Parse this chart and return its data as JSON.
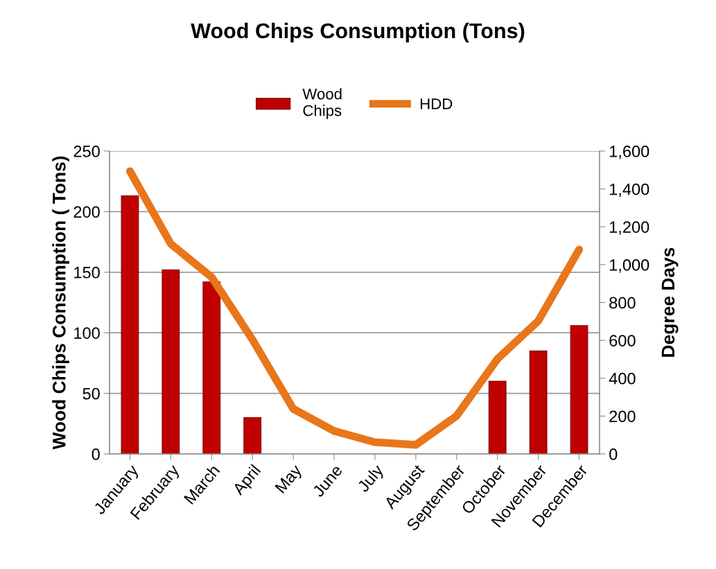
{
  "chart_data": {
    "type": "bar",
    "title": "Wood Chips Consumption (Tons)",
    "ylabel": "Wood Chips Consumption ( Tons)",
    "y2label": "Degree Days",
    "categories": [
      "January",
      "February",
      "March",
      "April",
      "May",
      "June",
      "July",
      "August",
      "September",
      "October",
      "November",
      "December"
    ],
    "series": [
      {
        "name": "Wood\nChips",
        "color": "#c00000",
        "values": [
          213,
          152,
          142,
          30,
          null,
          null,
          null,
          null,
          null,
          60,
          85,
          106
        ]
      },
      {
        "name": "HDD",
        "type": "line",
        "axis": "y2",
        "color": "#e8761a",
        "values": [
          1494,
          1110,
          934,
          604,
          238,
          121,
          62,
          48,
          201,
          502,
          703,
          1080
        ]
      }
    ],
    "ylim": [
      0,
      250
    ],
    "yticks": [
      0,
      50,
      100,
      150,
      200,
      250
    ],
    "y2lim": [
      0,
      1600
    ],
    "y2ticks": [
      {
        "value": 0,
        "label": "0"
      },
      {
        "value": 200,
        "label": "200"
      },
      {
        "value": 400,
        "label": "400"
      },
      {
        "value": 600,
        "label": "600"
      },
      {
        "value": 800,
        "label": "800"
      },
      {
        "value": 1000,
        "label": "1,000"
      },
      {
        "value": 1200,
        "label": "1,200"
      },
      {
        "value": 1400,
        "label": "1,400"
      },
      {
        "value": 1600,
        "label": "1,600"
      }
    ],
    "grid": "y",
    "legend": "top",
    "marker": "none",
    "line_style": "solid"
  }
}
